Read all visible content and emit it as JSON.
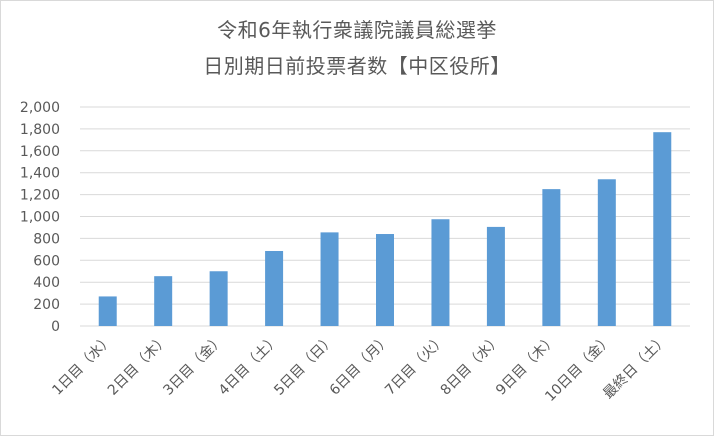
{
  "title_line1": "令和6年執行衆議院議員総選挙",
  "title_line2": "日別期日前投票者数【中区役所】",
  "colors": {
    "bar": "#5b9bd5",
    "grid": "#d9d9d9",
    "text": "#595959"
  },
  "chart_data": {
    "type": "bar",
    "title": "令和6年執行衆議院議員総選挙 日別期日前投票者数【中区役所】",
    "categories": [
      "1日目（水）",
      "2日目（木）",
      "3日目（金）",
      "4日目（土）",
      "5日目（日）",
      "6日目（月）",
      "7日目（火）",
      "8日目（水）",
      "9日目（木）",
      "10日目（金）",
      "最終日（土）"
    ],
    "values": [
      270,
      455,
      500,
      685,
      855,
      840,
      975,
      905,
      1250,
      1340,
      1770
    ],
    "ylim": [
      0,
      2000
    ],
    "yticks": [
      "0",
      "200",
      "400",
      "600",
      "800",
      "1,000",
      "1,200",
      "1,400",
      "1,600",
      "1,800",
      "2,000"
    ],
    "grid": true,
    "legend": "none"
  }
}
